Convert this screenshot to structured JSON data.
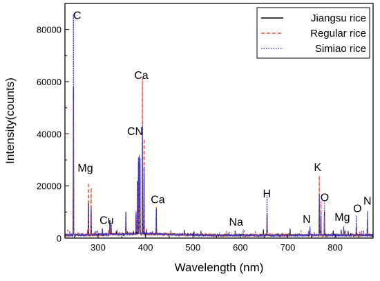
{
  "chart_data": {
    "type": "line",
    "title": "",
    "xlabel": "Wavelength (nm)",
    "ylabel": "Intensity(counts)",
    "xlim": [
      230,
      880
    ],
    "ylim": [
      0,
      90000
    ],
    "xticks": [
      300,
      400,
      500,
      600,
      700,
      800
    ],
    "yticks": [
      0,
      20000,
      40000,
      60000,
      80000
    ],
    "grid": false,
    "legend_position": "top-right",
    "series": [
      {
        "name": "Jiangsu rice",
        "color": "#000000",
        "style": "solid",
        "peaks": [
          [
            247.9,
            57500
          ],
          [
            279.5,
            14500
          ],
          [
            285.2,
            11500
          ],
          [
            309,
            2500
          ],
          [
            324.7,
            6000
          ],
          [
            327.4,
            4000
          ],
          [
            358.5,
            8000
          ],
          [
            380,
            9000
          ],
          [
            383,
            20000
          ],
          [
            385,
            28000
          ],
          [
            387.1,
            30000
          ],
          [
            388.3,
            29000
          ],
          [
            393.4,
            36000
          ],
          [
            396.8,
            26000
          ],
          [
            422.7,
            10000
          ],
          [
            517,
            1500
          ],
          [
            589,
            1500
          ],
          [
            656.3,
            8000
          ],
          [
            744,
            1500
          ],
          [
            746.8,
            2500
          ],
          [
            766.5,
            13000
          ],
          [
            769.9,
            8500
          ],
          [
            777.4,
            9000
          ],
          [
            818,
            2500
          ],
          [
            821,
            1500
          ],
          [
            844.6,
            4500
          ],
          [
            868,
            6000
          ]
        ]
      },
      {
        "name": "Regular rice",
        "color": "#e0533a",
        "style": "dashed",
        "peaks": [
          [
            247.9,
            52000
          ],
          [
            279.5,
            23000
          ],
          [
            285.2,
            19000
          ],
          [
            309,
            3000
          ],
          [
            324.7,
            5000
          ],
          [
            327.4,
            3500
          ],
          [
            358.5,
            7500
          ],
          [
            380,
            8500
          ],
          [
            383,
            19000
          ],
          [
            385,
            26000
          ],
          [
            387.1,
            29000
          ],
          [
            388.3,
            28000
          ],
          [
            393.4,
            60500
          ],
          [
            396.8,
            42000
          ],
          [
            422.7,
            12000
          ],
          [
            517,
            1500
          ],
          [
            589,
            1500
          ],
          [
            656.3,
            6000
          ],
          [
            744,
            1500
          ],
          [
            746.8,
            3000
          ],
          [
            766.5,
            23500
          ],
          [
            769.9,
            15000
          ],
          [
            777.4,
            7500
          ],
          [
            818,
            2500
          ],
          [
            821,
            1500
          ],
          [
            844.6,
            5000
          ],
          [
            868,
            4500
          ]
        ]
      },
      {
        "name": "Simiao rice",
        "color": "#3b3bd6",
        "style": "dotted",
        "peaks": [
          [
            247.9,
            86000
          ],
          [
            279.5,
            13500
          ],
          [
            285.2,
            10500
          ],
          [
            309,
            2500
          ],
          [
            324.7,
            6500
          ],
          [
            327.4,
            4500
          ],
          [
            358.5,
            9000
          ],
          [
            380,
            10000
          ],
          [
            383,
            21000
          ],
          [
            385,
            30000
          ],
          [
            387.1,
            31000
          ],
          [
            388.3,
            30500
          ],
          [
            393.4,
            42000
          ],
          [
            396.8,
            30000
          ],
          [
            422.7,
            11000
          ],
          [
            517,
            1500
          ],
          [
            589,
            1000
          ],
          [
            656.3,
            15000
          ],
          [
            744,
            2000
          ],
          [
            746.8,
            4000
          ],
          [
            766.5,
            16000
          ],
          [
            769.9,
            10000
          ],
          [
            777.4,
            13000
          ],
          [
            818,
            3500
          ],
          [
            821,
            2000
          ],
          [
            844.6,
            7500
          ],
          [
            868,
            9500
          ]
        ]
      }
    ],
    "annotations": [
      {
        "text": "C",
        "x": 256,
        "y": 84000
      },
      {
        "text": "Ca",
        "x": 391,
        "y": 61000
      },
      {
        "text": "CN",
        "x": 378,
        "y": 39500
      },
      {
        "text": "Mg",
        "x": 273,
        "y": 25500
      },
      {
        "text": "Cu",
        "x": 318,
        "y": 5500
      },
      {
        "text": "Ca",
        "x": 426,
        "y": 13400
      },
      {
        "text": "Na",
        "x": 591,
        "y": 4800
      },
      {
        "text": "H",
        "x": 656,
        "y": 15700
      },
      {
        "text": "N",
        "x": 740,
        "y": 5800
      },
      {
        "text": "K",
        "x": 763,
        "y": 25800
      },
      {
        "text": "O",
        "x": 778,
        "y": 14200
      },
      {
        "text": "Mg",
        "x": 815,
        "y": 6600
      },
      {
        "text": "O",
        "x": 847,
        "y": 10000
      },
      {
        "text": "N",
        "x": 868,
        "y": 12900
      }
    ]
  }
}
